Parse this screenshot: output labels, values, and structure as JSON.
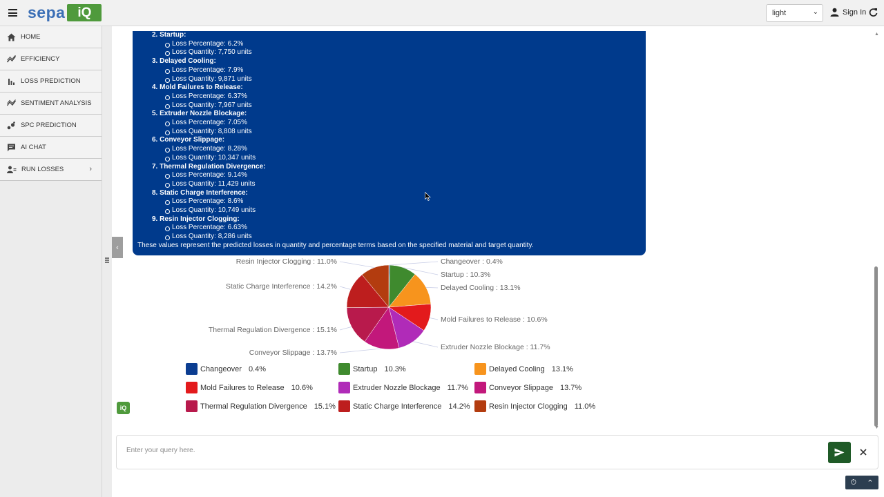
{
  "header": {
    "logo_text": "sepa",
    "logo_box": "iQ",
    "theme_value": "light",
    "signin_label": "Sign In"
  },
  "sidebar": {
    "items": [
      {
        "label": "HOME",
        "icon": "home-icon"
      },
      {
        "label": "EFFICIENCY",
        "icon": "trend-icon"
      },
      {
        "label": "LOSS PREDICTION",
        "icon": "bar-chart-icon"
      },
      {
        "label": "SENTIMENT ANALYSIS",
        "icon": "wave-icon"
      },
      {
        "label": "SPC PREDICTION",
        "icon": "scatter-icon"
      },
      {
        "label": "AI CHAT",
        "icon": "chat-icon"
      },
      {
        "label": "RUN LOSSES",
        "icon": "users-icon"
      }
    ]
  },
  "response": {
    "items": [
      {
        "title": "2. Startup:",
        "pct": "Loss Percentage: 6.2%",
        "qty": "Loss Quantity: 7,750 units"
      },
      {
        "title": "3. Delayed Cooling:",
        "pct": "Loss Percentage: 7.9%",
        "qty": "Loss Quantity: 9,871 units"
      },
      {
        "title": "4. Mold Failures to Release:",
        "pct": "Loss Percentage: 6.37%",
        "qty": "Loss Quantity: 7,967 units"
      },
      {
        "title": "5. Extruder Nozzle Blockage:",
        "pct": "Loss Percentage: 7.05%",
        "qty": "Loss Quantity: 8,808 units"
      },
      {
        "title": "6. Conveyor Slippage:",
        "pct": "Loss Percentage: 8.28%",
        "qty": "Loss Quantity: 10,347 units"
      },
      {
        "title": "7. Thermal Regulation Divergence:",
        "pct": "Loss Percentage: 9.14%",
        "qty": "Loss Quantity: 11,429 units"
      },
      {
        "title": "8. Static Charge Interference:",
        "pct": "Loss Percentage: 8.6%",
        "qty": "Loss Quantity: 10,749 units"
      },
      {
        "title": "9. Resin Injector Clogging:",
        "pct": "Loss Percentage: 6.63%",
        "qty": "Loss Quantity: 8,286 units"
      }
    ],
    "summary": "These values represent the predicted losses in quantity and percentage terms based on the specified material and target quantity."
  },
  "chart_data": {
    "type": "pie",
    "categories": [
      "Changeover",
      "Startup",
      "Delayed Cooling",
      "Mold Failures to Release",
      "Extruder Nozzle Blockage",
      "Conveyor Slippage",
      "Thermal Regulation Divergence",
      "Static Charge Interference",
      "Resin Injector Clogging"
    ],
    "values": [
      0.4,
      10.3,
      13.1,
      10.6,
      11.7,
      13.7,
      15.1,
      14.2,
      11.0
    ],
    "labels": [
      "Changeover : 0.4%",
      "Startup : 10.3%",
      "Delayed Cooling : 13.1%",
      "Mold Failures to Release : 10.6%",
      "Extruder Nozzle Blockage : 11.7%",
      "Conveyor Slippage : 13.7%",
      "Thermal Regulation Divergence : 15.1%",
      "Static Charge Interference : 14.2%",
      "Resin Injector Clogging : 11.0%"
    ],
    "legend_pcts": [
      "0.4%",
      "10.3%",
      "13.1%",
      "10.6%",
      "11.7%",
      "13.7%",
      "15.1%",
      "14.2%",
      "11.0%"
    ],
    "colors": [
      "#0b3d91",
      "#3f8a2e",
      "#f7941d",
      "#e31a1c",
      "#b02bb8",
      "#c2187b",
      "#b81a4c",
      "#bd1e1e",
      "#b33c0f"
    ],
    "legend": "bottom"
  },
  "query": {
    "placeholder": "Enter your query here."
  }
}
